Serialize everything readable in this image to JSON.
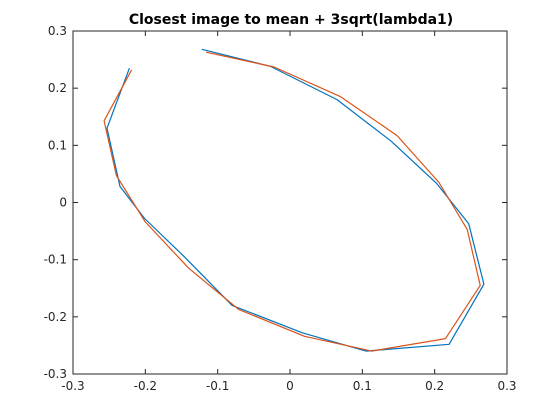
{
  "chart_data": {
    "type": "line",
    "title": "Closest image to mean + 3sqrt(lambda1)",
    "xlabel": "",
    "ylabel": "",
    "xlim": [
      -0.3,
      0.3
    ],
    "ylim": [
      -0.3,
      0.3
    ],
    "xticks": [
      -0.3,
      -0.2,
      -0.1,
      0,
      0.1,
      0.2,
      0.3
    ],
    "yticks": [
      -0.3,
      -0.2,
      -0.1,
      0,
      0.1,
      0.2,
      0.3
    ],
    "xtick_labels": [
      "-0.3",
      "-0.2",
      "-0.1",
      "0",
      "0.1",
      "0.2",
      "0.3"
    ],
    "ytick_labels": [
      "-0.3",
      "-0.2",
      "-0.1",
      "0",
      "0.1",
      "0.2",
      "0.3"
    ],
    "grid": false,
    "legend": "none",
    "series": [
      {
        "color": "#0072BD",
        "x": [
          -0.122,
          -0.027,
          0.065,
          0.14,
          0.203,
          0.247,
          0.268,
          0.22,
          0.105,
          0.017,
          -0.08,
          -0.146,
          -0.201,
          -0.235,
          -0.253,
          -0.222
        ],
        "y": [
          0.268,
          0.238,
          0.18,
          0.107,
          0.033,
          -0.037,
          -0.143,
          -0.248,
          -0.26,
          -0.228,
          -0.18,
          -0.095,
          -0.028,
          0.028,
          0.13,
          0.235
        ]
      },
      {
        "color": "#D95319",
        "x": [
          -0.116,
          -0.022,
          0.07,
          0.148,
          0.206,
          0.245,
          0.263,
          0.215,
          0.113,
          0.02,
          -0.071,
          -0.14,
          -0.2,
          -0.24,
          -0.257,
          -0.219
        ],
        "y": [
          0.263,
          0.237,
          0.185,
          0.117,
          0.035,
          -0.047,
          -0.145,
          -0.238,
          -0.26,
          -0.234,
          -0.187,
          -0.115,
          -0.034,
          0.047,
          0.143,
          0.232
        ]
      }
    ]
  }
}
